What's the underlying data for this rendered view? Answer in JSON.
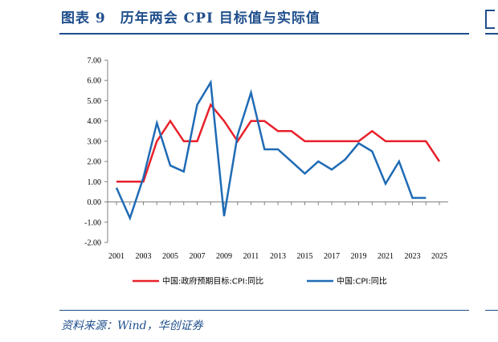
{
  "figure": {
    "title": "图表 9　历年两会 CPI 目标值与实际值",
    "source": "资料来源：Wind，华创证券"
  },
  "chart_data": {
    "type": "line",
    "x": [
      2001,
      2002,
      2003,
      2004,
      2005,
      2006,
      2007,
      2008,
      2009,
      2010,
      2011,
      2012,
      2013,
      2014,
      2015,
      2016,
      2017,
      2018,
      2019,
      2020,
      2021,
      2022,
      2023,
      2024,
      2025
    ],
    "x_tick_labels": [
      "2001",
      "2003",
      "2005",
      "2007",
      "2009",
      "2011",
      "2013",
      "2015",
      "2017",
      "2019",
      "2021",
      "2023",
      "2025"
    ],
    "y_tick_labels": [
      "-2.00",
      "-1.00",
      "0.00",
      "1.00",
      "2.00",
      "3.00",
      "4.00",
      "5.00",
      "6.00",
      "7.00"
    ],
    "ylim": [
      -2,
      7
    ],
    "grid": false,
    "legend_position": "bottom",
    "series": [
      {
        "name": "中国:政府预期目标:CPI:同比",
        "color": "#e8202a",
        "values": [
          1.0,
          1.0,
          1.0,
          3.0,
          4.0,
          3.0,
          3.0,
          4.8,
          4.0,
          3.0,
          4.0,
          4.0,
          3.5,
          3.5,
          3.0,
          3.0,
          3.0,
          3.0,
          3.0,
          3.5,
          3.0,
          3.0,
          3.0,
          3.0,
          2.0
        ]
      },
      {
        "name": "中国:CPI:同比",
        "color": "#1f6bb5",
        "values": [
          0.7,
          -0.8,
          1.2,
          3.9,
          1.8,
          1.5,
          4.8,
          5.9,
          -0.7,
          3.3,
          5.4,
          2.6,
          2.6,
          2.0,
          1.4,
          2.0,
          1.6,
          2.1,
          2.9,
          2.5,
          0.9,
          2.0,
          0.2,
          0.2,
          null
        ]
      }
    ]
  }
}
